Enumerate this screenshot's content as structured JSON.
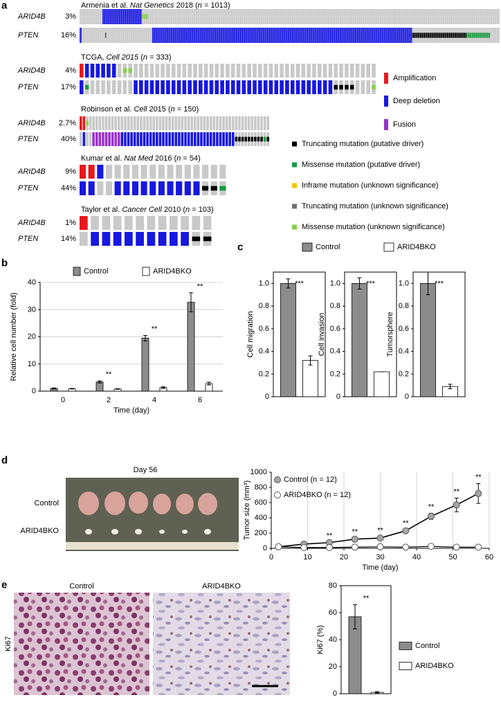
{
  "panel_labels": [
    "a",
    "b",
    "c",
    "d",
    "e"
  ],
  "oncoprint": {
    "unaltered_color": "#c9c9c9",
    "legend": [
      {
        "name": "Amplification",
        "color": "#e8191c",
        "style": "full"
      },
      {
        "name": "Deep deletion",
        "color": "#1818e0",
        "style": "full"
      },
      {
        "name": "Fusion",
        "color": "#9932cc",
        "style": "full"
      },
      {
        "name": "Truncating mutation (putative driver)",
        "color": "#000000",
        "style": "inner"
      },
      {
        "name": "Missense mutation (putative driver)",
        "color": "#169c3c",
        "style": "inner"
      },
      {
        "name": "Inframe mutation (unknown significance)",
        "color": "#f5c400",
        "style": "inner"
      },
      {
        "name": "Truncating mutation (unknown significance)",
        "color": "#707070",
        "style": "inner"
      },
      {
        "name": "Missense mutation (unknown significance)",
        "color": "#86d150",
        "style": "inner"
      }
    ],
    "studies": [
      {
        "title": [
          {
            "text": "Armenia et al. "
          },
          {
            "text": "Nat Genetics",
            "italic": true
          },
          {
            "text": " 2018 ("
          },
          {
            "text": "n",
            "italic": true
          },
          {
            "text": " = 1013)"
          }
        ],
        "rows": [
          {
            "gene": "ARID4B",
            "percent": "3%",
            "runs": [
              {
                "alteration": null,
                "count": 55
              },
              {
                "alteration": 1,
                "count": 95
              },
              {
                "alteration": 7,
                "count": 15
              },
              {
                "alteration": null,
                "count": 848
              }
            ]
          },
          {
            "gene": "PTEN",
            "percent": "16%",
            "runs": [
              {
                "alteration": 1,
                "count": 5
              },
              {
                "alteration": null,
                "count": 57
              },
              {
                "alteration": 3,
                "count": 2
              },
              {
                "alteration": null,
                "count": 111
              },
              {
                "alteration": 1,
                "count": 627
              },
              {
                "alteration": 3,
                "count": 131
              },
              {
                "alteration": 4,
                "count": 57
              },
              {
                "alteration": null,
                "count": 23
              }
            ]
          }
        ]
      },
      {
        "title": [
          {
            "text": "TCGA, "
          },
          {
            "text": "Cell 2015",
            "italic": true
          },
          {
            "text": " ("
          },
          {
            "text": "n",
            "italic": true
          },
          {
            "text": " = 333)"
          }
        ],
        "rows": [
          {
            "gene": "ARID4B",
            "percent": "4%",
            "runs": [
              {
                "alteration": 0,
                "count": 1
              },
              {
                "alteration": 1,
                "count": 6
              },
              {
                "alteration": null,
                "count": 1
              },
              {
                "alteration": 7,
                "count": 2
              },
              {
                "alteration": null,
                "count": 45
              }
            ]
          },
          {
            "gene": "PTEN",
            "percent": "17%",
            "runs": [
              {
                "alteration": 1,
                "count": 1
              },
              {
                "alteration": 4,
                "count": 1
              },
              {
                "alteration": null,
                "count": 8
              },
              {
                "alteration": 1,
                "count": 37
              },
              {
                "alteration": 3,
                "count": 4
              },
              {
                "alteration": null,
                "count": 3
              },
              {
                "alteration": 7,
                "count": 1
              }
            ]
          }
        ]
      },
      {
        "title": [
          {
            "text": "Robinson et al. "
          },
          {
            "text": "Cell",
            "italic": true
          },
          {
            "text": " 2015 ("
          },
          {
            "text": "n",
            "italic": true
          },
          {
            "text": " = 150)"
          }
        ],
        "rows": [
          {
            "gene": "ARID4B",
            "percent": "2.7%",
            "runs": [
              {
                "alteration": 0,
                "count": 2
              },
              {
                "alteration": 7,
                "count": 1
              },
              {
                "alteration": null,
                "count": 57
              }
            ]
          },
          {
            "gene": "PTEN",
            "percent": "40%",
            "runs": [
              {
                "alteration": null,
                "count": 1
              },
              {
                "alteration": 1,
                "count": 1
              },
              {
                "alteration": null,
                "count": 2
              },
              {
                "alteration": 2,
                "count": 9
              },
              {
                "alteration": 1,
                "count": 36
              },
              {
                "alteration": 3,
                "count": 9
              },
              {
                "alteration": 4,
                "count": 1
              },
              {
                "alteration": 3,
                "count": 1
              }
            ]
          }
        ]
      },
      {
        "title": [
          {
            "text": "Kumar et al. "
          },
          {
            "text": "Nat Med",
            "italic": true
          },
          {
            "text": " 2016 ("
          },
          {
            "text": "n",
            "italic": true
          },
          {
            "text": " = 54)"
          }
        ],
        "rows": [
          {
            "gene": "ARID4B",
            "percent": "9%",
            "runs": [
              {
                "alteration": 0,
                "count": 2
              },
              {
                "alteration": 1,
                "count": 1
              },
              {
                "alteration": null,
                "count": 14
              }
            ]
          },
          {
            "gene": "PTEN",
            "percent": "44%",
            "runs": [
              {
                "alteration": 1,
                "count": 2
              },
              {
                "alteration": null,
                "count": 2
              },
              {
                "alteration": 1,
                "count": 10
              },
              {
                "alteration": 3,
                "count": 2
              },
              {
                "alteration": 4,
                "count": 1
              }
            ]
          }
        ]
      },
      {
        "title": [
          {
            "text": "Taylor et al. "
          },
          {
            "text": "Cancer Cell",
            "italic": true
          },
          {
            "text": " 2010 ("
          },
          {
            "text": "n",
            "italic": true
          },
          {
            "text": " = 103)"
          }
        ],
        "rows": [
          {
            "gene": "ARID4B",
            "percent": "1%",
            "runs": [
              {
                "alteration": 0,
                "count": 1
              },
              {
                "alteration": null,
                "count": 11
              }
            ]
          },
          {
            "gene": "PTEN",
            "percent": "14%",
            "runs": [
              {
                "alteration": null,
                "count": 1
              },
              {
                "alteration": 1,
                "count": 9
              },
              {
                "alteration": 3,
                "count": 2
              }
            ]
          }
        ]
      }
    ]
  },
  "chart_data": [
    {
      "type": "bar",
      "xlabel": "Time (day)",
      "ylabel": "Relative cell number (fold)",
      "categories": [
        "0",
        "2",
        "4",
        "6"
      ],
      "series": [
        {
          "name": "Control",
          "color": "#8c8c8c",
          "values": [
            1,
            3.4,
            19.5,
            32.7
          ],
          "errors": [
            0.2,
            0.4,
            1,
            3.5
          ]
        },
        {
          "name": "ARID4BKO",
          "color": "#ffffff",
          "values": [
            0.9,
            0.8,
            1.3,
            2.8
          ],
          "errors": [
            0.1,
            0.1,
            0.3,
            0.5
          ]
        }
      ],
      "significance": [
        null,
        "**",
        "**",
        "**"
      ],
      "ylim": [
        0,
        40
      ],
      "yticks": [
        0,
        10,
        20,
        30,
        40
      ],
      "grid": true
    },
    {
      "type": "bar-panels",
      "ylabels": [
        "Cell migration",
        "Cell invasion",
        "Tumorsphere"
      ],
      "series": [
        {
          "name": "Control",
          "color": "#8c8c8c",
          "values": [
            1,
            1,
            1
          ],
          "errors": [
            0.04,
            0.05,
            0.1
          ]
        },
        {
          "name": "ARID4BKO",
          "color": "#ffffff",
          "values": [
            0.32,
            0.22,
            0.09
          ],
          "errors": [
            0.04,
            0,
            0.02
          ]
        }
      ],
      "significance": [
        "***",
        "***",
        "***"
      ],
      "ylim": [
        0,
        1.1
      ],
      "yticks": [
        0,
        0.2,
        0.4,
        0.6,
        0.8,
        {
          "value": 1,
          "label": "1.0"
        }
      ]
    },
    {
      "type": "line",
      "xlabel": "Time (day)",
      "ylabel": "Tumor size (mm³)",
      "x": [
        2,
        9,
        16,
        23,
        30,
        37,
        44,
        51,
        57
      ],
      "series": [
        {
          "name": "Control (n = 12)",
          "color": "#a6a6a6",
          "values": [
            20,
            55,
            75,
            120,
            135,
            230,
            420,
            570,
            720
          ],
          "errors": [
            5,
            8,
            8,
            10,
            15,
            15,
            40,
            90,
            130
          ]
        },
        {
          "name": "ARID4BKO (n = 12)",
          "color": "#ffffff",
          "values": [
            20,
            10,
            10,
            15,
            20,
            15,
            25,
            15,
            15
          ],
          "errors": [
            3,
            3,
            3,
            3,
            3,
            3,
            5,
            3,
            3
          ]
        }
      ],
      "significance": [
        null,
        null,
        "**",
        "**",
        "**",
        "**",
        "**",
        "**",
        "**"
      ],
      "xlim": [
        0,
        60
      ],
      "xticks": [
        0,
        10,
        20,
        30,
        40,
        50,
        60
      ],
      "ylim": [
        0,
        1000
      ],
      "yticks": [
        0,
        200,
        400,
        600,
        800,
        1000
      ],
      "grid": "x"
    },
    {
      "type": "bar",
      "ylabel": "Ki67 (%)",
      "categories": [
        null
      ],
      "series": [
        {
          "name": "Control",
          "color": "#8c8c8c",
          "values": [
            57
          ],
          "errors": [
            9
          ]
        },
        {
          "name": "ARID4BKO",
          "color": "#ffffff",
          "values": [
            1
          ],
          "errors": [
            0.5
          ]
        }
      ],
      "significance": [
        "**"
      ],
      "ylim": [
        0,
        80
      ],
      "yticks": [
        0,
        20,
        40,
        60,
        80
      ]
    }
  ],
  "images": {
    "d": {
      "title": "Day 56",
      "rows": [
        "Control",
        "ARID4BKO"
      ]
    },
    "e": {
      "labels": [
        "Control",
        "ARID4BKO"
      ],
      "stain": "Ki67"
    }
  }
}
